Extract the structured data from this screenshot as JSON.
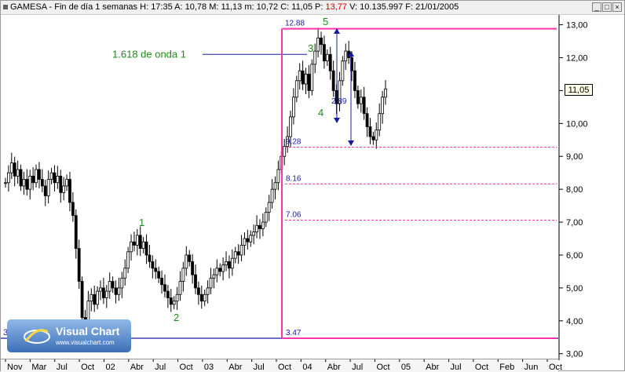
{
  "titlebar": {
    "symbol": "GAMESA",
    "separator": "-",
    "period": "Fin de día 1 semanas",
    "H_label": "H:",
    "H_value": "17:35",
    "A_label": "A:",
    "A_value": "10,78",
    "M_label": "M:",
    "M_value": "11,13",
    "m_label": "m:",
    "m_value": "10,72",
    "C_label": "C:",
    "C_value": "11,05",
    "P_label": "P:",
    "P_value": "13,77",
    "V_label": "V:",
    "V_value": "10.135.997",
    "F_label": "F:",
    "F_value": "21/01/2005",
    "minimize": "_",
    "maximize": "□",
    "close": "×"
  },
  "logo": {
    "name": "Visual Chart",
    "url": "www.visualchart.com"
  },
  "colors": {
    "candle": "#000000",
    "fib": "#ff33aa",
    "blue_line": "#1a1aa0",
    "wave": "#1d8a1d",
    "price_text": "#1a1aa0"
  },
  "chart_data": {
    "type": "bar",
    "title": "",
    "xlabel": "",
    "ylabel": "",
    "ylim": [
      2.85,
      13.3
    ],
    "y_ticks": [
      "13,00",
      "12,00",
      "11,00",
      "10,00",
      "9,00",
      "8,00",
      "7,00",
      "6,00",
      "5,00",
      "4,00",
      "3,00"
    ],
    "y_tick_values": [
      13,
      12,
      11,
      10,
      9,
      8,
      7,
      6,
      5,
      4,
      3
    ],
    "x_ticks": [
      "Nov",
      "Mar",
      "Jul",
      "Oct",
      "02",
      "Abr",
      "Jul",
      "Oct",
      "03",
      "Abr",
      "Jul",
      "Oct",
      "04",
      "Abr",
      "Jul",
      "Oct",
      "05",
      "Abr",
      "Jul",
      "Oct",
      "Feb",
      "Jun",
      "Oct"
    ],
    "last_price": "11,05",
    "fib_levels": [
      {
        "label": "12.88",
        "value": 12.88
      },
      {
        "label": "9.28",
        "value": 9.28
      },
      {
        "label": "8.16",
        "value": 8.16
      },
      {
        "label": "7.06",
        "value": 7.06
      },
      {
        "label": "3.47",
        "value": 3.47
      }
    ],
    "annotation_main": "1.618 de onda 1",
    "annotation_main_value": 12.1,
    "measure_label": "2.89",
    "wave_labels": [
      "1",
      "2",
      "3",
      "4",
      "5"
    ],
    "left_line_label": "3",
    "price_points": [
      8.2,
      8.5,
      8.8,
      8.4,
      8.6,
      8.1,
      8.3,
      8.0,
      8.4,
      8.2,
      8.6,
      8.3,
      8.1,
      7.8,
      8.3,
      8.5,
      8.2,
      8.4,
      7.9,
      8.1,
      8.3,
      7.6,
      7.2,
      6.2,
      5.2,
      4.1,
      3.9,
      4.6,
      4.8,
      4.5,
      4.9,
      5.0,
      4.7,
      4.9,
      5.2,
      5.0,
      4.8,
      5.0,
      5.3,
      5.6,
      6.1,
      6.4,
      6.3,
      6.6,
      6.2,
      6.4,
      6.0,
      5.8,
      5.6,
      5.5,
      5.3,
      5.1,
      4.9,
      4.7,
      4.5,
      4.6,
      4.8,
      5.2,
      5.6,
      6.0,
      5.8,
      5.4,
      5.0,
      4.8,
      4.6,
      4.8,
      5.0,
      5.3,
      5.4,
      5.6,
      5.5,
      5.7,
      5.8,
      5.6,
      5.9,
      6.1,
      6.0,
      6.3,
      6.5,
      6.4,
      6.6,
      6.7,
      6.9,
      6.8,
      7.0,
      7.3,
      7.6,
      8.0,
      8.2,
      8.6,
      9.0,
      9.3,
      9.6,
      10.2,
      10.8,
      11.3,
      11.6,
      11.2,
      11.5,
      11.0,
      11.8,
      12.2,
      12.6,
      12.4,
      11.9,
      12.1,
      11.6,
      11.0,
      10.6,
      11.3,
      11.9,
      12.2,
      12.0,
      11.6,
      11.0,
      10.6,
      10.8,
      10.3,
      9.9,
      9.6,
      9.5,
      9.8,
      10.3,
      10.8,
      11.05
    ]
  }
}
